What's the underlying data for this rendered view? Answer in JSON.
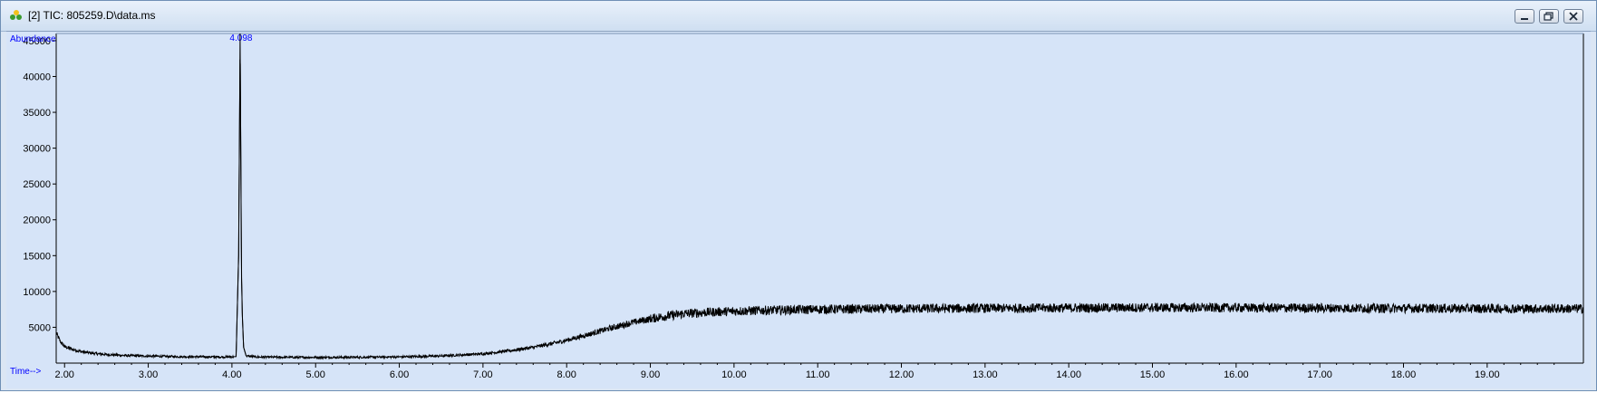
{
  "window": {
    "title": "[2] TIC: 805259.D\\data.ms",
    "buttons": [
      "minimize",
      "restore",
      "close"
    ]
  },
  "icons": {
    "app": "chromatogram-app-icon",
    "minimize": "minimize-icon",
    "restore": "restore-icon",
    "close": "close-icon"
  },
  "colors": {
    "plot_background": "#d6e4f8",
    "trace": "#000000",
    "axis_labels": "#0000ff",
    "frame": "#000000"
  },
  "chart_data": {
    "type": "line",
    "ylabel": "Abundance",
    "xlabel": "Time-->",
    "xlim": [
      1.9,
      20.15
    ],
    "ylim": [
      0,
      46000
    ],
    "xticks": [
      2,
      3,
      4,
      5,
      6,
      7,
      8,
      9,
      10,
      11,
      12,
      13,
      14,
      15,
      16,
      17,
      18,
      19
    ],
    "xtick_labels": [
      "2.00",
      "3.00",
      "4.00",
      "5.00",
      "6.00",
      "7.00",
      "8.00",
      "9.00",
      "10.00",
      "11.00",
      "12.00",
      "13.00",
      "14.00",
      "15.00",
      "16.00",
      "17.00",
      "18.00",
      "19.00"
    ],
    "yticks": [
      5000,
      10000,
      15000,
      20000,
      25000,
      30000,
      35000,
      40000,
      45000
    ],
    "ytick_labels": [
      "5000",
      "10000",
      "15000",
      "20000",
      "25000",
      "30000",
      "35000",
      "40000",
      "45000"
    ],
    "grid": false,
    "peaks": [
      {
        "x": 4.098,
        "y": 46000,
        "label": "4.098"
      }
    ],
    "series": [
      {
        "values_xy": [
          [
            1.9,
            4200
          ],
          [
            1.95,
            3000
          ],
          [
            2.0,
            2300
          ],
          [
            2.1,
            1900
          ],
          [
            2.2,
            1600
          ],
          [
            2.35,
            1350
          ],
          [
            2.5,
            1200
          ],
          [
            2.75,
            1050
          ],
          [
            3.0,
            980
          ],
          [
            3.3,
            920
          ],
          [
            3.6,
            880
          ],
          [
            3.9,
            860
          ],
          [
            4.05,
            900
          ],
          [
            4.08,
            15000
          ],
          [
            4.09,
            31500
          ],
          [
            4.098,
            46000
          ],
          [
            4.105,
            31000
          ],
          [
            4.115,
            12000
          ],
          [
            4.125,
            6500
          ],
          [
            4.14,
            2200
          ],
          [
            4.17,
            1000
          ],
          [
            4.3,
            850
          ],
          [
            4.6,
            820
          ],
          [
            5.0,
            800
          ],
          [
            5.5,
            820
          ],
          [
            6.0,
            870
          ],
          [
            6.5,
            1000
          ],
          [
            7.0,
            1300
          ],
          [
            7.3,
            1700
          ],
          [
            7.6,
            2200
          ],
          [
            7.9,
            2900
          ],
          [
            8.2,
            3800
          ],
          [
            8.5,
            4800
          ],
          [
            8.8,
            5700
          ],
          [
            9.1,
            6400
          ],
          [
            9.4,
            6900
          ],
          [
            9.7,
            7100
          ],
          [
            10.0,
            7250
          ],
          [
            10.5,
            7400
          ],
          [
            11.0,
            7500
          ],
          [
            11.5,
            7550
          ],
          [
            12.0,
            7600
          ],
          [
            13.0,
            7650
          ],
          [
            14.0,
            7700
          ],
          [
            15.0,
            7750
          ],
          [
            16.0,
            7720
          ],
          [
            17.0,
            7680
          ],
          [
            18.0,
            7650
          ],
          [
            19.0,
            7620
          ],
          [
            20.15,
            7600
          ]
        ]
      }
    ]
  }
}
